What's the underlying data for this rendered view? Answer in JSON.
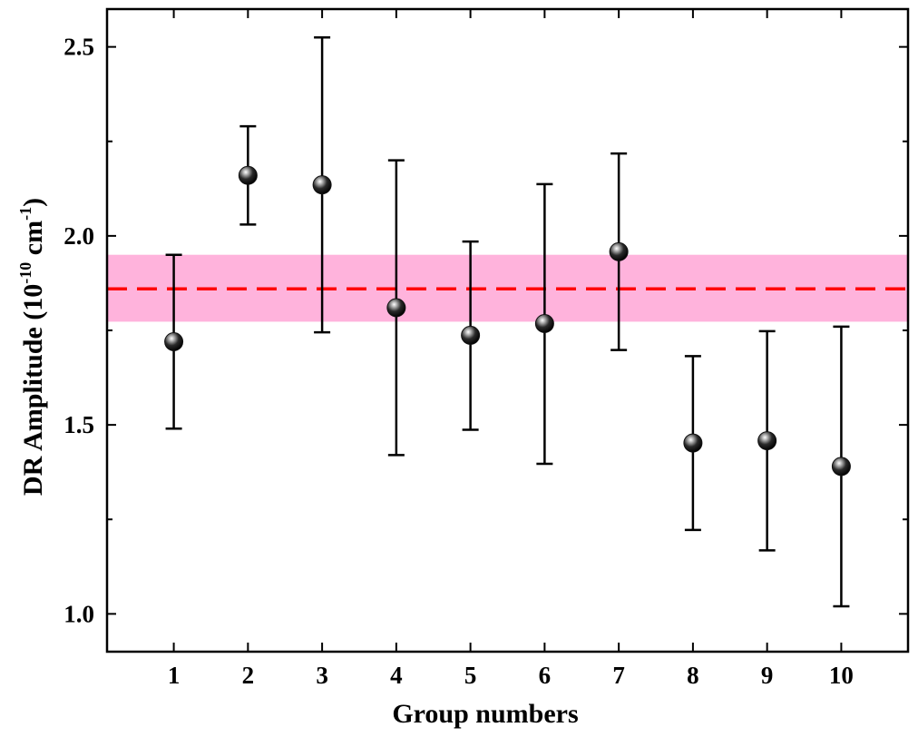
{
  "chart_data": {
    "type": "scatter",
    "xlabel": "Group numbers",
    "ylabel": {
      "prefix": "DR Amplitude (10",
      "exp1": "-10",
      "mid": " cm",
      "exp2": "-1",
      "suffix": ")"
    },
    "xlim": [
      0.1,
      10.9
    ],
    "ylim": [
      0.9,
      2.6
    ],
    "x_ticks": [
      "1",
      "2",
      "3",
      "4",
      "5",
      "6",
      "7",
      "8",
      "9",
      "10"
    ],
    "y_ticks": [
      "1.0",
      "1.5",
      "2.0",
      "2.5"
    ],
    "points": [
      {
        "x": 1,
        "y": 1.72,
        "lo": 1.49,
        "hi": 1.95
      },
      {
        "x": 2,
        "y": 2.16,
        "lo": 2.03,
        "hi": 2.29
      },
      {
        "x": 3,
        "y": 2.135,
        "lo": 1.745,
        "hi": 2.525
      },
      {
        "x": 4,
        "y": 1.81,
        "lo": 1.42,
        "hi": 2.2
      },
      {
        "x": 5,
        "y": 1.737,
        "lo": 1.487,
        "hi": 1.985
      },
      {
        "x": 6,
        "y": 1.768,
        "lo": 1.397,
        "hi": 2.137
      },
      {
        "x": 7,
        "y": 1.958,
        "lo": 1.698,
        "hi": 2.218
      },
      {
        "x": 8,
        "y": 1.452,
        "lo": 1.222,
        "hi": 1.682
      },
      {
        "x": 9,
        "y": 1.458,
        "lo": 1.168,
        "hi": 1.748
      },
      {
        "x": 10,
        "y": 1.39,
        "lo": 1.02,
        "hi": 1.76
      }
    ],
    "mean_line": 1.86,
    "band": [
      1.773,
      1.95
    ],
    "colors": {
      "band": "#ffb3dc",
      "mean_line": "#ff0000",
      "marker": "#111111",
      "errorbar": "#000000",
      "axis": "#000000"
    },
    "grid": false
  }
}
